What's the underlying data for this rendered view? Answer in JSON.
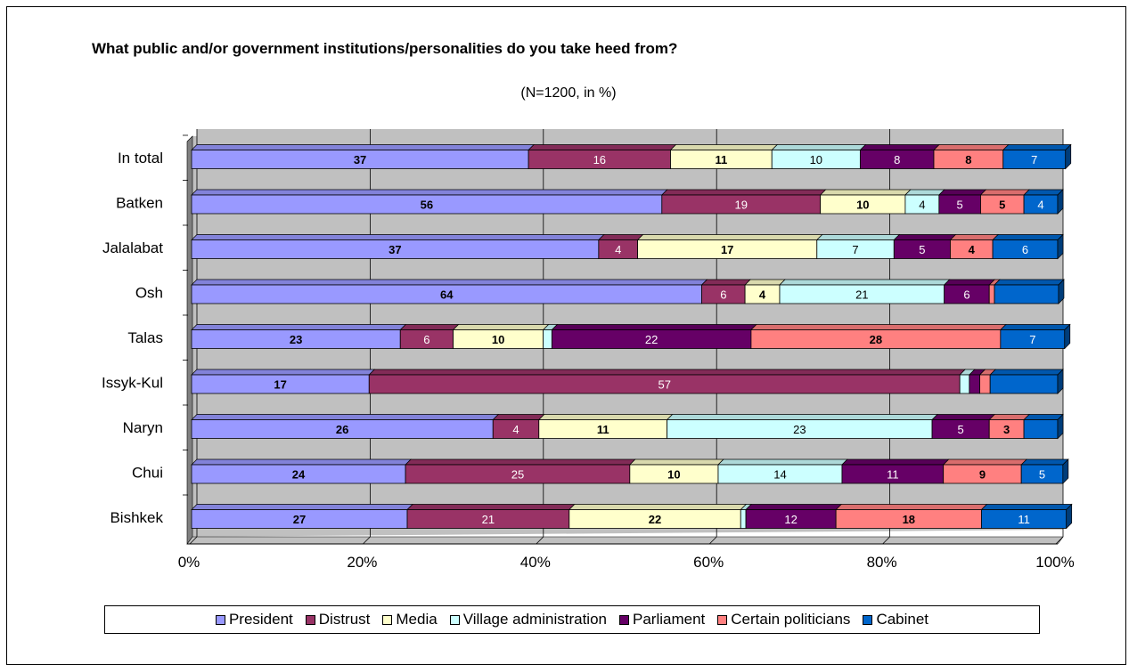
{
  "chart_data": {
    "type": "bar",
    "orientation": "horizontal",
    "stacked": "percent",
    "title": "What public and/or government institutions/personalities do you take heed from?",
    "subtitle": "(N=1200, in %)",
    "categories": [
      "In total",
      "Batken",
      "Jalalabat",
      "Osh",
      "Talas",
      "Issyk-Kul",
      "Naryn",
      "Chui",
      "Bishkek"
    ],
    "x_ticks": [
      "0%",
      "20%",
      "40%",
      "60%",
      "80%",
      "100%"
    ],
    "xlim": [
      0,
      100
    ],
    "grid": true,
    "legend_position": "bottom",
    "series": [
      {
        "name": "President",
        "color": "#9999FF",
        "label_color": "#000000",
        "label_bold": true,
        "values": [
          37,
          56,
          37,
          64,
          23,
          17,
          26,
          24,
          27
        ]
      },
      {
        "name": "Distrust",
        "color": "#993366",
        "label_color": "#FFFFFF",
        "label_bold": false,
        "values": [
          16,
          19,
          4,
          6,
          6,
          57,
          4,
          25,
          21
        ]
      },
      {
        "name": "Media",
        "color": "#FFFFCC",
        "label_color": "#000000",
        "label_bold": true,
        "values": [
          11,
          10,
          17,
          4,
          10,
          null,
          11,
          10,
          22
        ]
      },
      {
        "name": "Village administration",
        "color": "#CCFFFF",
        "label_color": "#000000",
        "label_bold": false,
        "values": [
          10,
          4,
          7,
          21,
          null,
          null,
          23,
          14,
          null
        ]
      },
      {
        "name": "Parliament",
        "color": "#660066",
        "label_color": "#FFFFFF",
        "label_bold": false,
        "values": [
          8,
          5,
          5,
          6,
          22,
          null,
          5,
          11,
          12
        ]
      },
      {
        "name": "Certain politicians",
        "color": "#FF8080",
        "label_color": "#000000",
        "label_bold": true,
        "values": [
          8,
          5,
          4,
          null,
          28,
          null,
          3,
          9,
          18
        ]
      },
      {
        "name": "Cabinet",
        "color": "#0066CC",
        "label_color": "#FFFFFF",
        "label_bold": false,
        "values": [
          7,
          4,
          6,
          null,
          7,
          null,
          null,
          5,
          11
        ]
      }
    ],
    "bar_fractions": [
      [
        0.389,
        0.164,
        0.117,
        0.102,
        0.085,
        0.08,
        0.072
      ],
      [
        0.543,
        0.183,
        0.098,
        0.039,
        0.048,
        0.05,
        0.039
      ],
      [
        0.47,
        0.045,
        0.207,
        0.089,
        0.065,
        0.049,
        0.075
      ],
      [
        0.589,
        0.05,
        0.04,
        0.19,
        0.052,
        0.006,
        0.074
      ],
      [
        0.241,
        0.061,
        0.104,
        0.01,
        0.23,
        0.288,
        0.074
      ],
      [
        0.205,
        0.682,
        0.0,
        0.011,
        0.012,
        0.012,
        0.078
      ],
      [
        0.348,
        0.053,
        0.148,
        0.306,
        0.066,
        0.04,
        0.039
      ],
      [
        0.247,
        0.259,
        0.102,
        0.143,
        0.117,
        0.09,
        0.048
      ],
      [
        0.249,
        0.187,
        0.198,
        0.006,
        0.104,
        0.168,
        0.098
      ]
    ]
  }
}
